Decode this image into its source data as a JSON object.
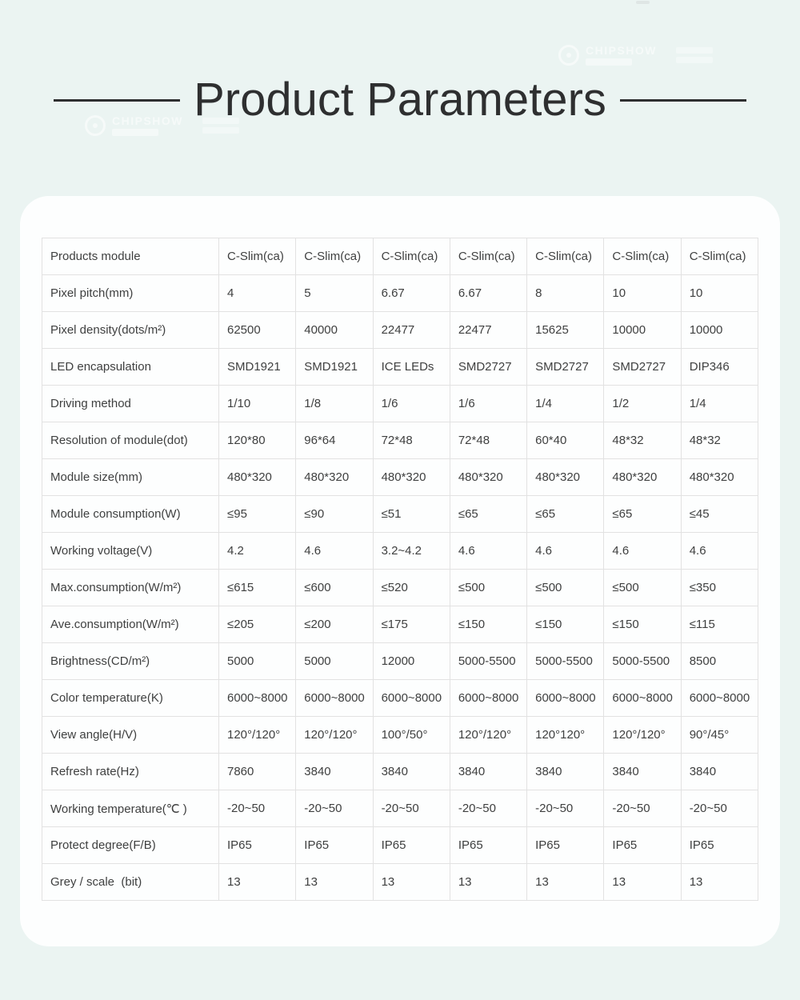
{
  "title": "Product Parameters",
  "watermark": {
    "text": "CHIPSHOW",
    "icon": "chipshow-logo-icon"
  },
  "colors": {
    "page_background": "#ebf4f2",
    "card_background": "#fdfefe",
    "title_text": "#2e2f30",
    "table_text": "#3f4040",
    "table_border": "#e2e2e2"
  },
  "table": {
    "rows": [
      {
        "label": "Products module",
        "values": [
          "C-Slim(ca)",
          "C-Slim(ca)",
          "C-Slim(ca)",
          "C-Slim(ca)",
          "C-Slim(ca)",
          "C-Slim(ca)",
          "C-Slim(ca)"
        ]
      },
      {
        "label": "Pixel pitch(mm)",
        "values": [
          "4",
          "5",
          "6.67",
          "6.67",
          "8",
          "10",
          "10"
        ]
      },
      {
        "label": "Pixel density(dots/m²)",
        "values": [
          "62500",
          "40000",
          "22477",
          "22477",
          "15625",
          "10000",
          "10000"
        ]
      },
      {
        "label": "LED encapsulation",
        "values": [
          "SMD1921",
          "SMD1921",
          "ICE LEDs",
          "SMD2727",
          "SMD2727",
          "SMD2727",
          "DIP346"
        ]
      },
      {
        "label": "Driving method",
        "values": [
          "1/10",
          "1/8",
          "1/6",
          "1/6",
          "1/4",
          "1/2",
          "1/4"
        ]
      },
      {
        "label": "Resolution of module(dot)",
        "values": [
          "120*80",
          "96*64",
          "72*48",
          "72*48",
          "60*40",
          "48*32",
          "48*32"
        ]
      },
      {
        "label": "Module size(mm)",
        "values": [
          "480*320",
          "480*320",
          "480*320",
          "480*320",
          "480*320",
          "480*320",
          "480*320"
        ]
      },
      {
        "label": "Module consumption(W)",
        "values": [
          "≤95",
          "≤90",
          "≤51",
          "≤65",
          "≤65",
          "≤65",
          "≤45"
        ]
      },
      {
        "label": "Working voltage(V)",
        "values": [
          "4.2",
          "4.6",
          "3.2~4.2",
          "4.6",
          "4.6",
          "4.6",
          "4.6"
        ]
      },
      {
        "label": "Max.consumption(W/m²)",
        "values": [
          "≤615",
          "≤600",
          "≤520",
          "≤500",
          "≤500",
          "≤500",
          "≤350"
        ]
      },
      {
        "label": "Ave.consumption(W/m²)",
        "values": [
          "≤205",
          "≤200",
          "≤175",
          "≤150",
          "≤150",
          "≤150",
          "≤115"
        ]
      },
      {
        "label": "Brightness(CD/m²)",
        "values": [
          "5000",
          "5000",
          "12000",
          "5000-5500",
          "5000-5500",
          "5000-5500",
          "8500"
        ]
      },
      {
        "label": "Color temperature(K)",
        "values": [
          "6000~8000",
          "6000~8000",
          "6000~8000",
          "6000~8000",
          "6000~8000",
          "6000~8000",
          "6000~8000"
        ]
      },
      {
        "label": "View angle(H/V)",
        "values": [
          "120°/120°",
          "120°/120°",
          "100°/50°",
          "120°/120°",
          "120°120°",
          "120°/120°",
          "90°/45°"
        ]
      },
      {
        "label": "Refresh rate(Hz)",
        "values": [
          "7860",
          "3840",
          "3840",
          "3840",
          "3840",
          "3840",
          "3840"
        ]
      },
      {
        "label": "Working temperature(℃ )",
        "values": [
          "-20~50",
          "-20~50",
          "-20~50",
          "-20~50",
          "-20~50",
          "-20~50",
          "-20~50"
        ]
      },
      {
        "label": "Protect degree(F/B)",
        "values": [
          "IP65",
          "IP65",
          "IP65",
          "IP65",
          "IP65",
          "IP65",
          "IP65"
        ]
      },
      {
        "label": "Grey / scale  (bit)",
        "values": [
          "13",
          "13",
          "13",
          "13",
          "13",
          "13",
          "13"
        ]
      }
    ]
  }
}
